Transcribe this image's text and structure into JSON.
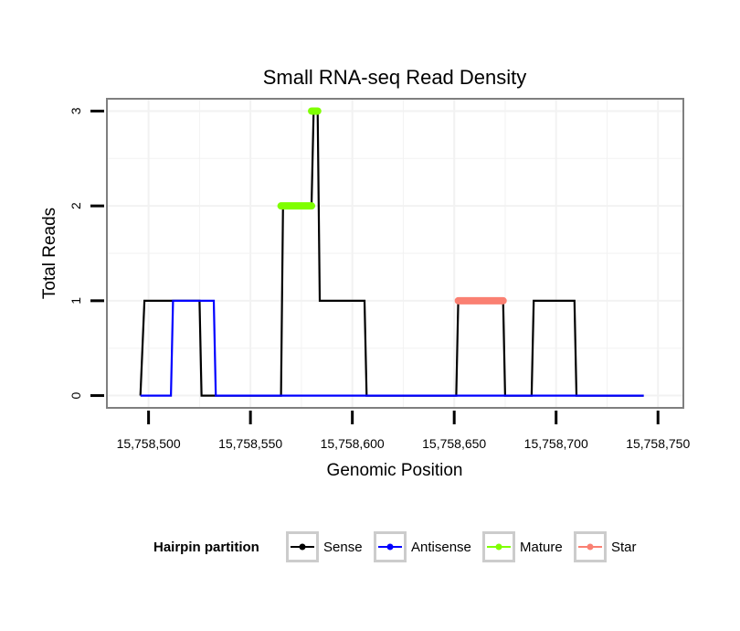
{
  "chart_data": {
    "type": "line",
    "title": "Small RNA-seq Read Density",
    "xlabel": "Genomic Position",
    "ylabel": "Total Reads",
    "xlim": [
      15758480,
      15758762
    ],
    "ylim": [
      -0.12,
      3.12
    ],
    "x_ticks": [
      15758500,
      15758550,
      15758600,
      15758650,
      15758700,
      15758750
    ],
    "x_tick_labels": [
      "15,758,500",
      "15,758,550",
      "15,758,600",
      "15,758,650",
      "15,758,700",
      "15,758,750"
    ],
    "y_ticks": [
      0,
      1,
      2,
      3
    ],
    "y_tick_labels": [
      "0",
      "1",
      "2",
      "3"
    ],
    "grid": true,
    "legend": {
      "title": "Hairpin partition",
      "position": "bottom",
      "entries": [
        "Sense",
        "Antisense",
        "Mature",
        "Star"
      ]
    },
    "series": [
      {
        "name": "Sense",
        "color": "#000000",
        "x": [
          15758496,
          15758498,
          15758525,
          15758526,
          15758565,
          15758566,
          15758580,
          15758581,
          15758583,
          15758584,
          15758606,
          15758607,
          15758651,
          15758652,
          15758674,
          15758675,
          15758688,
          15758689,
          15758709,
          15758710,
          15758743
        ],
        "y": [
          0,
          1,
          1,
          0,
          0,
          2,
          2,
          3,
          3,
          1,
          1,
          0,
          0,
          1,
          1,
          0,
          0,
          1,
          1,
          0,
          0
        ]
      },
      {
        "name": "Antisense",
        "color": "#0000ff",
        "x": [
          15758496,
          15758511,
          15758512,
          15758532,
          15758533,
          15758743
        ],
        "y": [
          0,
          0,
          1,
          1,
          0,
          0
        ]
      },
      {
        "name": "Mature",
        "color": "#7fff00",
        "segments": [
          {
            "x": [
              15758565,
              15758580
            ],
            "y": [
              2,
              2
            ]
          },
          {
            "x": [
              15758580,
              15758583
            ],
            "y": [
              3,
              3
            ]
          }
        ]
      },
      {
        "name": "Star",
        "color": "#fa8072",
        "segments": [
          {
            "x": [
              15758652,
              15758674
            ],
            "y": [
              1,
              1
            ]
          }
        ]
      }
    ]
  }
}
